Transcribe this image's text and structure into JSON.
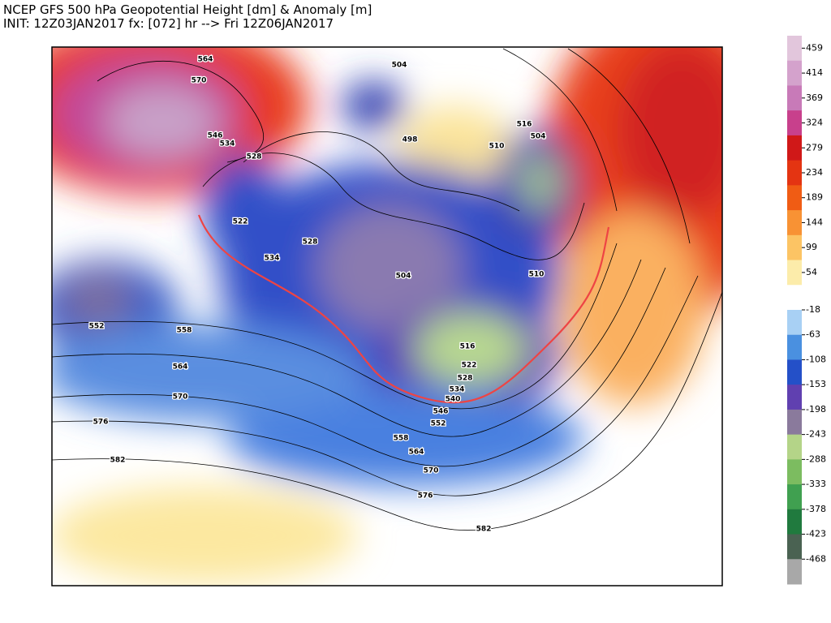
{
  "header": {
    "title": "NCEP GFS 500 hPa Geopotential Height [dm] & Anomaly [m]",
    "subtitle": "INIT: 12Z03JAN2017 fx: [072] hr --> Fri 12Z06JAN2017"
  },
  "colorbar": {
    "ticks": [
      459,
      414,
      369,
      324,
      279,
      234,
      189,
      144,
      99,
      54,
      -18,
      -63,
      -108,
      -153,
      -198,
      -243,
      -288,
      -333,
      -378,
      -423,
      -468
    ]
  },
  "contour_labels": [
    564,
    570,
    546,
    534,
    528,
    504,
    498,
    516,
    510,
    504,
    522,
    528,
    534,
    504,
    510,
    552,
    558,
    564,
    570,
    576,
    582,
    516,
    522,
    528,
    534,
    540,
    546,
    552,
    558,
    564,
    570,
    576,
    582
  ]
}
